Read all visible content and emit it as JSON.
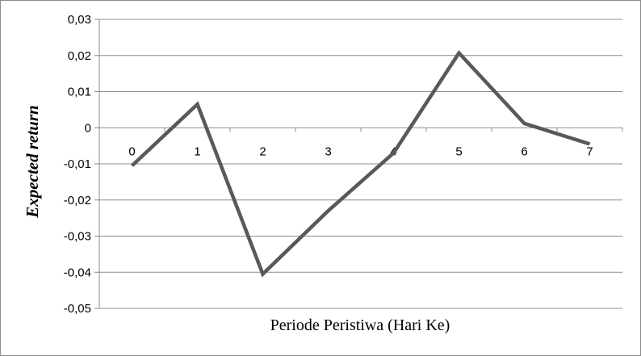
{
  "chart_data": {
    "type": "line",
    "title": "",
    "xlabel": "Periode Peristiwa (Hari Ke)",
    "ylabel": "Expected  return",
    "categories": [
      "0",
      "1",
      "2",
      "3",
      "4",
      "5",
      "6",
      "7"
    ],
    "series": [
      {
        "values": [
          -0.0105,
          0.0065,
          -0.0405,
          -0.023,
          -0.007,
          0.0207,
          0.0012,
          -0.0045
        ]
      }
    ],
    "ylim": [
      -0.05,
      0.03
    ],
    "yticks": [
      {
        "value": 0.03,
        "label": "0,03"
      },
      {
        "value": 0.02,
        "label": "0,02"
      },
      {
        "value": 0.01,
        "label": "0,01"
      },
      {
        "value": 0.0,
        "label": "0"
      },
      {
        "value": -0.01,
        "label": "-0,01"
      },
      {
        "value": -0.02,
        "label": "-0,02"
      },
      {
        "value": -0.03,
        "label": "-0,03"
      },
      {
        "value": -0.04,
        "label": "-0,04"
      },
      {
        "value": -0.05,
        "label": "-0,05"
      }
    ],
    "grid": true,
    "legend": "none",
    "line_color": "#595959",
    "grid_color": "#8c8c8c"
  }
}
